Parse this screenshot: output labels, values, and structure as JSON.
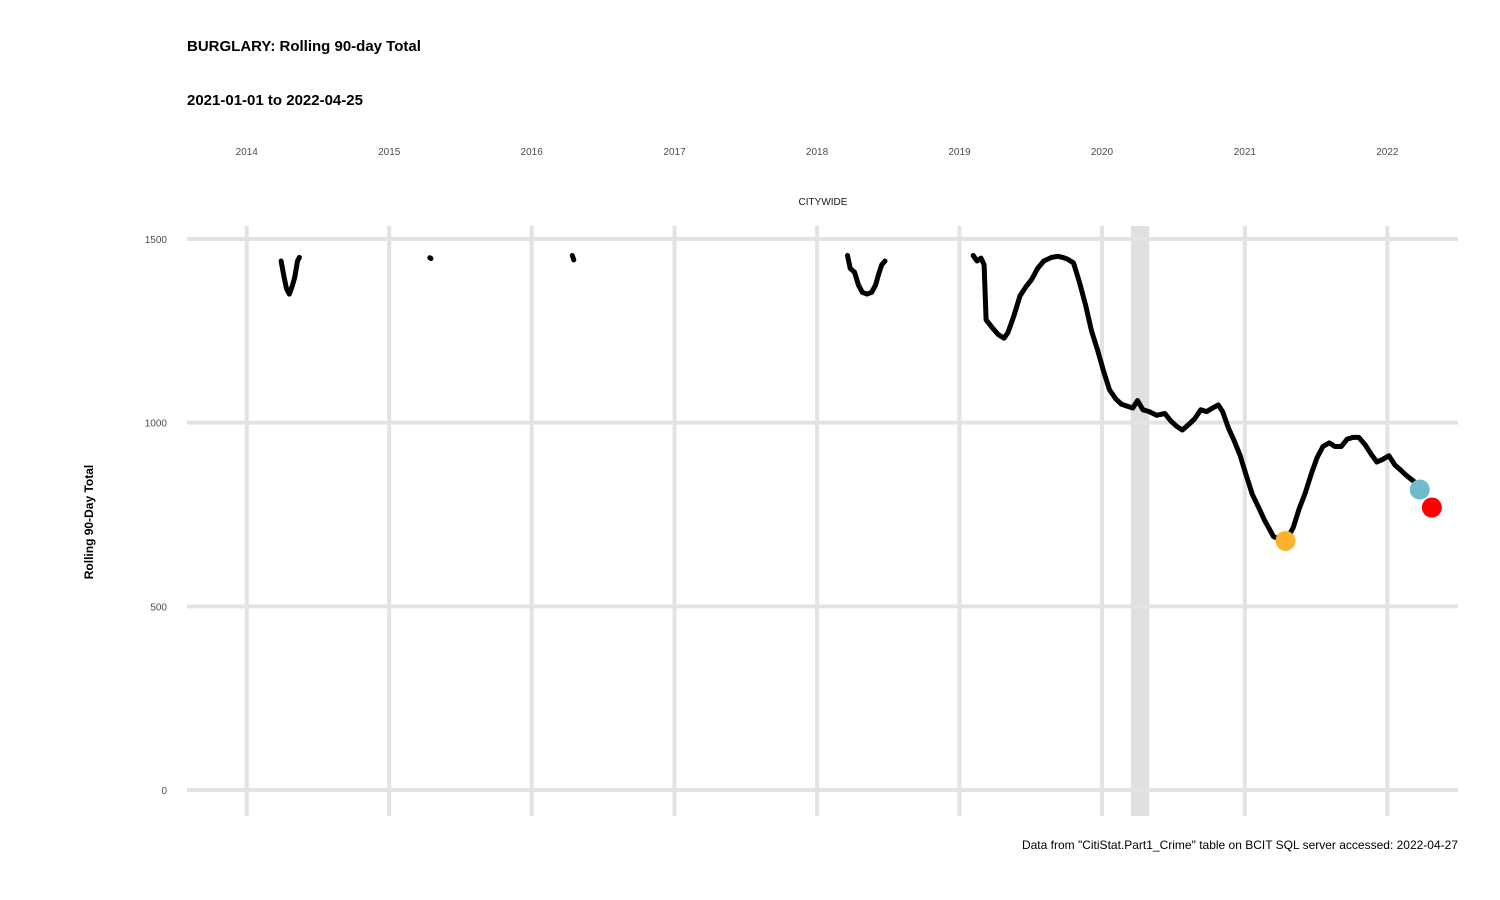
{
  "chart_data": {
    "type": "line",
    "title": "BURGLARY: Rolling 90-day Total",
    "subtitle": "2021-01-01 to 2022-04-25",
    "facet_label": "CITYWIDE",
    "ylabel": "Rolling 90-Day Total",
    "xlabel": "",
    "caption": "Data from \"CitiStat.Part1_Crime\" table on BCIT SQL server accessed: 2022-04-27",
    "ylim": [
      0,
      1500
    ],
    "y_ticks": [
      0,
      500,
      1000,
      1500
    ],
    "x_range": [
      "2013-08-01",
      "2022-07-01"
    ],
    "x_ticks": [
      {
        "date": "2014-01-01",
        "label": "2014"
      },
      {
        "date": "2015-01-01",
        "label": "2015"
      },
      {
        "date": "2016-01-01",
        "label": "2016"
      },
      {
        "date": "2017-01-01",
        "label": "2017"
      },
      {
        "date": "2018-01-01",
        "label": "2018"
      },
      {
        "date": "2019-01-01",
        "label": "2019"
      },
      {
        "date": "2020-01-01",
        "label": "2020"
      },
      {
        "date": "2021-01-01",
        "label": "2021"
      },
      {
        "date": "2022-01-01",
        "label": "2022"
      }
    ],
    "grid": true,
    "shaded_band": {
      "start": "2020-03-15",
      "end": "2020-05-01",
      "color": "#e0e0e0"
    },
    "series": [
      {
        "color": "#000000",
        "segments": [
          [
            [
              "2014-03-30",
              1440
            ],
            [
              "2014-04-06",
              1400
            ],
            [
              "2014-04-13",
              1365
            ],
            [
              "2014-04-20",
              1350
            ],
            [
              "2014-04-27",
              1370
            ],
            [
              "2014-05-04",
              1395
            ],
            [
              "2014-05-11",
              1440
            ],
            [
              "2014-05-16",
              1450
            ]
          ],
          [
            [
              "2015-04-15",
              1449
            ],
            [
              "2015-04-18",
              1447
            ]
          ],
          [
            [
              "2016-04-14",
              1455
            ],
            [
              "2016-04-18",
              1443
            ]
          ],
          [
            [
              "2018-03-20",
              1455
            ],
            [
              "2018-03-27",
              1420
            ],
            [
              "2018-04-07",
              1410
            ],
            [
              "2018-04-17",
              1375
            ],
            [
              "2018-04-27",
              1355
            ],
            [
              "2018-05-09",
              1350
            ],
            [
              "2018-05-21",
              1355
            ],
            [
              "2018-05-31",
              1375
            ],
            [
              "2018-06-08",
              1405
            ],
            [
              "2018-06-16",
              1430
            ],
            [
              "2018-06-24",
              1440
            ]
          ],
          [
            [
              "2019-02-05",
              1455
            ],
            [
              "2019-02-15",
              1440
            ],
            [
              "2019-02-25",
              1448
            ],
            [
              "2019-03-05",
              1430
            ],
            [
              "2019-03-10",
              1280
            ],
            [
              "2019-03-25",
              1260
            ],
            [
              "2019-04-10",
              1240
            ],
            [
              "2019-04-25",
              1230
            ],
            [
              "2019-05-05",
              1245
            ],
            [
              "2019-05-20",
              1290
            ],
            [
              "2019-06-05",
              1345
            ],
            [
              "2019-06-20",
              1370
            ],
            [
              "2019-07-05",
              1390
            ],
            [
              "2019-07-20",
              1420
            ],
            [
              "2019-08-05",
              1440
            ],
            [
              "2019-08-25",
              1450
            ],
            [
              "2019-09-10",
              1453
            ],
            [
              "2019-09-22",
              1450
            ],
            [
              "2019-10-05",
              1445
            ],
            [
              "2019-10-20",
              1435
            ],
            [
              "2019-11-05",
              1380
            ],
            [
              "2019-11-20",
              1320
            ],
            [
              "2019-12-05",
              1250
            ],
            [
              "2019-12-20",
              1200
            ],
            [
              "2020-01-05",
              1140
            ],
            [
              "2020-01-20",
              1090
            ],
            [
              "2020-02-05",
              1065
            ],
            [
              "2020-02-20",
              1050
            ],
            [
              "2020-03-05",
              1045
            ],
            [
              "2020-03-20",
              1040
            ],
            [
              "2020-04-01",
              1060
            ],
            [
              "2020-04-15",
              1035
            ],
            [
              "2020-05-01",
              1030
            ],
            [
              "2020-05-20",
              1020
            ],
            [
              "2020-06-10",
              1025
            ],
            [
              "2020-06-25",
              1005
            ],
            [
              "2020-07-10",
              990
            ],
            [
              "2020-07-25",
              980
            ],
            [
              "2020-08-10",
              995
            ],
            [
              "2020-08-25",
              1010
            ],
            [
              "2020-09-10",
              1035
            ],
            [
              "2020-09-25",
              1030
            ],
            [
              "2020-10-10",
              1040
            ],
            [
              "2020-10-25",
              1048
            ],
            [
              "2020-11-05",
              1030
            ],
            [
              "2020-11-20",
              985
            ],
            [
              "2020-12-05",
              950
            ],
            [
              "2020-12-20",
              910
            ],
            [
              "2021-01-05",
              855
            ],
            [
              "2021-01-20",
              805
            ],
            [
              "2021-02-05",
              770
            ],
            [
              "2021-02-20",
              735
            ],
            [
              "2021-03-05",
              710
            ],
            [
              "2021-03-15",
              690
            ],
            [
              "2021-03-25",
              685
            ],
            [
              "2021-04-05",
              680
            ],
            [
              "2021-04-20",
              685
            ],
            [
              "2021-05-05",
              715
            ],
            [
              "2021-05-20",
              765
            ],
            [
              "2021-06-05",
              810
            ],
            [
              "2021-06-20",
              860
            ],
            [
              "2021-07-05",
              905
            ],
            [
              "2021-07-20",
              935
            ],
            [
              "2021-08-05",
              945
            ],
            [
              "2021-08-20",
              935
            ],
            [
              "2021-09-05",
              935
            ],
            [
              "2021-09-20",
              955
            ],
            [
              "2021-10-05",
              960
            ],
            [
              "2021-10-20",
              960
            ],
            [
              "2021-11-05",
              940
            ],
            [
              "2021-11-20",
              915
            ],
            [
              "2021-12-05",
              893
            ],
            [
              "2021-12-20",
              900
            ],
            [
              "2022-01-05",
              910
            ],
            [
              "2022-01-20",
              885
            ],
            [
              "2022-02-05",
              870
            ],
            [
              "2022-02-20",
              855
            ],
            [
              "2022-03-10",
              840
            ]
          ]
        ]
      }
    ],
    "highlight_points": [
      {
        "date": "2021-04-15",
        "value": 678,
        "color": "#fbb22e"
      },
      {
        "date": "2022-03-25",
        "value": 818,
        "color": "#6fbbcb"
      },
      {
        "date": "2022-04-25",
        "value": 769,
        "color": "#ff0000"
      }
    ]
  }
}
